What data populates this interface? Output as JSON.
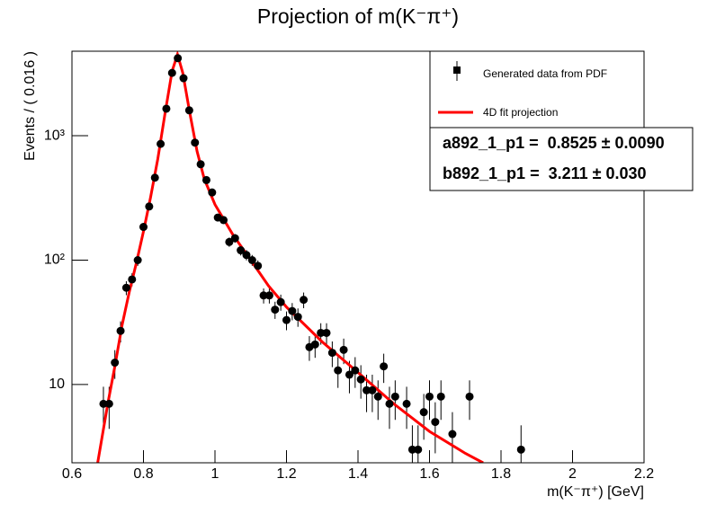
{
  "chart_data": {
    "type": "scatter",
    "title": "Projection of m(K⁻π⁺)",
    "x_label": "m(K⁻π⁺) [GeV]",
    "y_label": "Events / ( 0.016 )",
    "yscale": "log",
    "xlim": [
      0.6,
      2.2
    ],
    "ylim": [
      2.35,
      4780
    ],
    "xticks": [
      0.6,
      0.8,
      1,
      1.2,
      1.4,
      1.6,
      1.8,
      2,
      2.2
    ],
    "yticks": [
      10,
      {
        "value": 100,
        "label": "10²"
      },
      {
        "value": 1000,
        "label": "10³"
      }
    ],
    "series": [
      {
        "name": "Generated data from PDF",
        "color": "#000000",
        "x": [
          0.688,
          0.704,
          0.72,
          0.736,
          0.752,
          0.768,
          0.784,
          0.8,
          0.816,
          0.832,
          0.848,
          0.864,
          0.88,
          0.896,
          0.912,
          0.928,
          0.944,
          0.96,
          0.976,
          0.992,
          1.008,
          1.024,
          1.04,
          1.056,
          1.072,
          1.088,
          1.104,
          1.12,
          1.136,
          1.152,
          1.168,
          1.184,
          1.2,
          1.216,
          1.232,
          1.248,
          1.264,
          1.28,
          1.296,
          1.312,
          1.328,
          1.344,
          1.36,
          1.376,
          1.392,
          1.408,
          1.424,
          1.44,
          1.456,
          1.472,
          1.488,
          1.504,
          1.536,
          1.552,
          1.568,
          1.584,
          1.6,
          1.616,
          1.632,
          1.664,
          1.712,
          1.856
        ],
        "values": [
          7,
          7,
          15,
          27,
          60,
          70,
          100,
          185,
          270,
          460,
          860,
          1650,
          3200,
          4200,
          2900,
          1600,
          880,
          590,
          440,
          350,
          220,
          210,
          140,
          150,
          120,
          110,
          100,
          90,
          52,
          52,
          40,
          46,
          33,
          39,
          35,
          48,
          20,
          21,
          26,
          26,
          18,
          13,
          19,
          12,
          13,
          11,
          9,
          9,
          8,
          14,
          7,
          8,
          7,
          3,
          3,
          6,
          8,
          5,
          8,
          4,
          8,
          3
        ],
        "errors": [
          2.6,
          2.6,
          3.9,
          5.2,
          7.7,
          8.4,
          10,
          13.6,
          16.4,
          21,
          29,
          41,
          57,
          65,
          54,
          40,
          30,
          24,
          21,
          19,
          15,
          14.5,
          12,
          12.2,
          11,
          10.5,
          10,
          9.5,
          7.2,
          7.2,
          6.3,
          6.8,
          5.7,
          6.2,
          5.9,
          6.9,
          4.5,
          4.6,
          5.1,
          5.1,
          4.2,
          3.6,
          4.4,
          3.5,
          3.6,
          3.3,
          3,
          3,
          2.8,
          3.7,
          2.6,
          2.8,
          2.6,
          1.7,
          1.7,
          2.4,
          2.8,
          2.2,
          2.8,
          2,
          2.8,
          1.7
        ]
      },
      {
        "name": "4D fit projection",
        "color": "#ff0000",
        "x": [
          0.672,
          0.7,
          0.72,
          0.74,
          0.76,
          0.78,
          0.8,
          0.82,
          0.84,
          0.86,
          0.88,
          0.895,
          0.91,
          0.93,
          0.95,
          0.97,
          1.0,
          1.05,
          1.1,
          1.15,
          1.2,
          1.3,
          1.4,
          1.5,
          1.6,
          1.7,
          1.75
        ],
        "values": [
          2.35,
          7,
          14,
          30,
          55,
          95,
          170,
          320,
          650,
          1500,
          3300,
          4500,
          3200,
          1500,
          750,
          450,
          280,
          160,
          100,
          62,
          42,
          22,
          12.5,
          7,
          4.2,
          2.8,
          2.35
        ]
      }
    ],
    "stats": [
      "a892_1_p1 =  0.8525 ± 0.0090",
      "b892_1_p1 =  3.211 ± 0.030"
    ]
  }
}
